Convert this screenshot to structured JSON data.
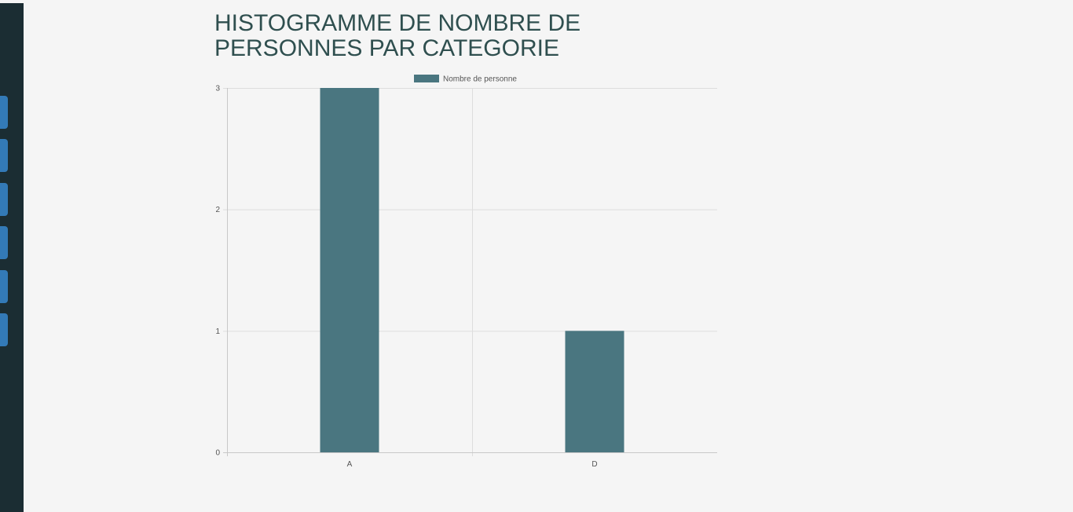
{
  "page": {
    "title": "HISTOGRAMME DE NOMBRE DE PERSONNES PAR CATEGORIE"
  },
  "sidebar": {
    "buttons": [
      {
        "label": ""
      },
      {
        "label": ""
      },
      {
        "label": ""
      },
      {
        "label": ""
      },
      {
        "label": ""
      },
      {
        "label": ""
      }
    ]
  },
  "colors": {
    "bar": "#4a7680",
    "grid": "#dddddd",
    "axis": "#c8c8c8",
    "sidebar": "#1b2d33",
    "sidebar_button": "#337ab7",
    "title": "#2f4f4f"
  },
  "chart_data": {
    "type": "bar",
    "title": "",
    "categories": [
      "A",
      "D"
    ],
    "series": [
      {
        "name": "Nombre de personne",
        "values": [
          3,
          1
        ]
      }
    ],
    "xlabel": "",
    "ylabel": "",
    "ylim": [
      0,
      3
    ],
    "yticks": [
      0,
      1,
      2,
      3
    ],
    "grid": true,
    "legend": "top-center"
  }
}
